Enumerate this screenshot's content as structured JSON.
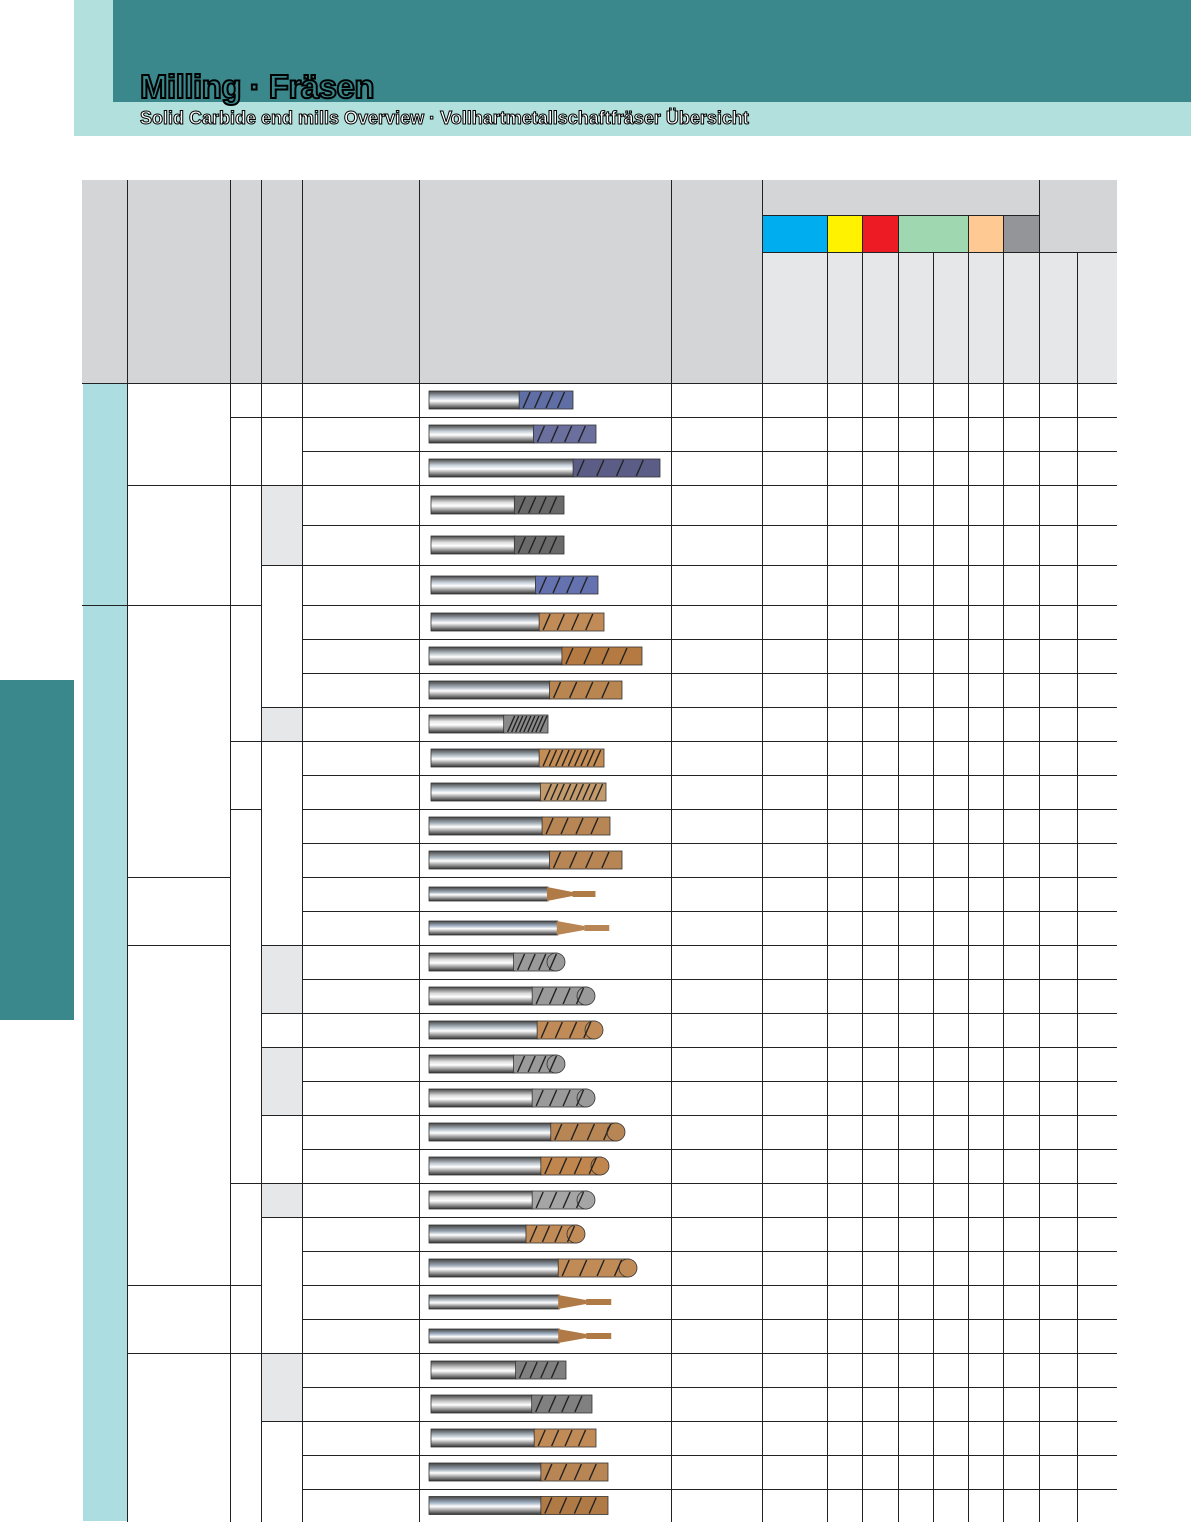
{
  "header": {
    "title": "Milling · Fräsen",
    "subtitle": "Solid Carbide end mills Overview · Vollhartmetallschaftfräser Übersicht"
  },
  "colors": {
    "teal_dark": "#3a878c",
    "teal_light": "#b2e0dd",
    "category_band": "#acdde1",
    "material_groups": [
      "#00aeef",
      "#fff200",
      "#ed1c24",
      "#9ed7b0",
      "#ffc994",
      "#939598"
    ]
  },
  "table": {
    "header_cells": [],
    "tools": [
      {
        "icon": "end-mill-square-silver-blue-icon"
      },
      {
        "icon": "end-mill-square-silver-blue-icon"
      },
      {
        "icon": "end-mill-square-dark-blue-icon"
      },
      {
        "icon": "end-mill-square-uncoated-icon"
      },
      {
        "icon": "end-mill-square-uncoated-icon"
      },
      {
        "icon": "end-mill-square-blue-icon"
      },
      {
        "icon": "end-mill-square-bronze-icon"
      },
      {
        "icon": "end-mill-square-bronze-icon"
      },
      {
        "icon": "end-mill-square-bronze-icon"
      },
      {
        "icon": "end-mill-multi-flute-uncoated-icon"
      },
      {
        "icon": "end-mill-multi-flute-bronze-icon"
      },
      {
        "icon": "end-mill-multi-flute-bronze-icon"
      },
      {
        "icon": "end-mill-square-bronze-icon"
      },
      {
        "icon": "end-mill-square-bronze-icon"
      },
      {
        "icon": "end-mill-micro-bronze-icon"
      },
      {
        "icon": "end-mill-micro-bronze-icon"
      },
      {
        "icon": "ball-nose-uncoated-icon"
      },
      {
        "icon": "ball-nose-uncoated-icon"
      },
      {
        "icon": "ball-nose-bronze-icon"
      },
      {
        "icon": "ball-nose-uncoated-icon"
      },
      {
        "icon": "ball-nose-uncoated-icon"
      },
      {
        "icon": "ball-nose-bronze-icon"
      },
      {
        "icon": "ball-nose-bronze-icon"
      },
      {
        "icon": "ball-nose-uncoated-icon"
      },
      {
        "icon": "ball-nose-bronze-icon"
      },
      {
        "icon": "ball-nose-bronze-icon"
      },
      {
        "icon": "ball-nose-micro-bronze-icon"
      },
      {
        "icon": "ball-nose-micro-bronze-icon"
      },
      {
        "icon": "corner-radius-uncoated-icon"
      },
      {
        "icon": "corner-radius-uncoated-icon"
      },
      {
        "icon": "corner-radius-bronze-icon"
      },
      {
        "icon": "corner-radius-bronze-icon"
      },
      {
        "icon": "corner-radius-bronze-icon"
      }
    ]
  }
}
